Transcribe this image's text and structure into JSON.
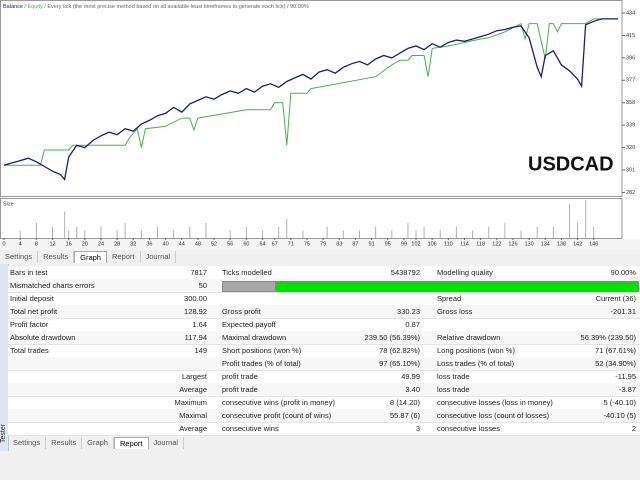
{
  "chart_data": {
    "type": "line",
    "separator": " / ",
    "model": "Every tick (the most precise method based on all available least timeframes to generate each tick)",
    "quality": "90.00%",
    "annotation": "USDCAD",
    "xlim": [
      -1,
      153
    ],
    "ylim": [
      279,
      445
    ],
    "yticks": [
      282,
      301,
      320,
      339,
      358,
      377,
      396,
      415,
      434
    ],
    "xticks": [
      0,
      4,
      8,
      12,
      16,
      20,
      24,
      28,
      32,
      36,
      40,
      44,
      48,
      52,
      56,
      60,
      64,
      67,
      71,
      75,
      79,
      83,
      87,
      91,
      95,
      99,
      102,
      106,
      110,
      114,
      118,
      122,
      126,
      130,
      134,
      138,
      142,
      146
    ],
    "grid": false,
    "series": [
      {
        "name": "Balance",
        "color": "#1b2166",
        "x": [
          0,
          2,
          4,
          6,
          8,
          10,
          12,
          14,
          15,
          16,
          18,
          20,
          22,
          24,
          26,
          28,
          30,
          32,
          34,
          36,
          38,
          40,
          42,
          44,
          46,
          48,
          50,
          52,
          54,
          56,
          58,
          60,
          62,
          64,
          66,
          68,
          70,
          72,
          74,
          76,
          78,
          80,
          82,
          84,
          86,
          88,
          90,
          92,
          94,
          96,
          98,
          100,
          102,
          104,
          106,
          108,
          110,
          112,
          114,
          116,
          118,
          120,
          122,
          124,
          126,
          128,
          130,
          132,
          133,
          134,
          136,
          138,
          140,
          142,
          143,
          144,
          146,
          148,
          150,
          152
        ],
        "values": [
          305,
          307,
          309,
          311,
          308,
          304,
          300,
          297,
          293,
          312,
          322,
          320,
          326,
          330,
          333,
          331,
          336,
          334,
          340,
          343,
          347,
          349,
          354,
          350,
          357,
          360,
          363,
          361,
          365,
          368,
          366,
          370,
          367,
          372,
          374,
          371,
          376,
          379,
          382,
          378,
          384,
          386,
          383,
          388,
          391,
          393,
          390,
          395,
          398,
          396,
          400,
          404,
          406,
          403,
          408,
          405,
          409,
          411,
          410,
          412,
          414,
          416,
          419,
          420,
          422,
          423,
          413,
          388,
          380,
          398,
          402,
          390,
          385,
          378,
          372,
          424,
          427,
          429,
          429,
          429
        ]
      },
      {
        "name": "Equity",
        "color": "#4caf50",
        "x": [
          0,
          9,
          10,
          16,
          17,
          30,
          31,
          33,
          34,
          35,
          40,
          44,
          46,
          47,
          48,
          60,
          66,
          67,
          69,
          70,
          71,
          75,
          76,
          92,
          96,
          98,
          100,
          101,
          104,
          105,
          106,
          110,
          114,
          118,
          120,
          124,
          128,
          129,
          130,
          132,
          134,
          135,
          136,
          137,
          138,
          144,
          146,
          152
        ],
        "values": [
          305,
          305,
          318,
          318,
          322,
          322,
          328,
          336,
          320,
          336,
          338,
          345,
          345,
          335,
          345,
          352,
          352,
          358,
          358,
          322,
          366,
          366,
          370,
          380,
          390,
          394,
          394,
          398,
          398,
          380,
          404,
          406,
          409,
          412,
          413,
          418,
          425,
          412,
          425,
          425,
          395,
          425,
          425,
          418,
          425,
          425,
          429,
          429
        ]
      }
    ],
    "size": {
      "label": "Size",
      "ylim": [
        0,
        10
      ],
      "x": [
        4,
        8,
        12,
        15,
        16,
        18,
        20,
        24,
        28,
        30,
        34,
        38,
        42,
        46,
        50,
        56,
        60,
        64,
        68,
        70,
        74,
        80,
        84,
        88,
        92,
        96,
        100,
        102,
        104,
        108,
        112,
        116,
        120,
        124,
        128,
        132,
        136,
        140,
        142,
        144,
        146
      ],
      "values": [
        2,
        4,
        3,
        7,
        2,
        3,
        2,
        3,
        2,
        4,
        2,
        3,
        2,
        3,
        4,
        2,
        3,
        2,
        3,
        5,
        2,
        3,
        2,
        2,
        3,
        2,
        4,
        2,
        3,
        2,
        3,
        2,
        3,
        4,
        2,
        3,
        3,
        9,
        4,
        10,
        3
      ]
    }
  },
  "tabs_top": {
    "items": [
      "Settings",
      "Results",
      "Graph",
      "Report",
      "Journal"
    ],
    "active": 2
  },
  "tabs_bottom": {
    "items": [
      "Settings",
      "Results",
      "Graph",
      "Report",
      "Journal"
    ],
    "active": 3
  },
  "vertical_label": "Tester",
  "report": {
    "rows": [
      [
        "Bars in test",
        "7817",
        "Ticks modelled",
        "5438792",
        "Modelling quality",
        "90.00%"
      ],
      [
        "Mismatched charts errors",
        "50",
        null,
        null,
        null,
        null
      ],
      [
        "Initial deposit",
        "300.00",
        null,
        null,
        "Spread",
        "Current (36)"
      ],
      [
        "Total net profit",
        "128.92",
        "Gross profit",
        "330.23",
        "Gross loss",
        "-201.31"
      ],
      [
        "Profit factor",
        "1.64",
        "Expected payoff",
        "0.87",
        null,
        null
      ],
      [
        "Absolute drawdown",
        "117.94",
        "Maximal drawdown",
        "239.50 (56.39%)",
        "Relative drawdown",
        "56.39% (239.50)"
      ],
      [
        "Total trades",
        "149",
        "Short positions (won %)",
        "78 (62.82%)",
        "Long positions (won %)",
        "71 (67.61%)"
      ],
      [
        null,
        null,
        "Profit trades (% of total)",
        "97 (65.10%)",
        "Loss trades (% of total)",
        "52 (34.90%)"
      ],
      [
        null,
        "Largest",
        "profit trade",
        "49.99",
        "loss trade",
        "-11.95"
      ],
      [
        null,
        "Average",
        "profit trade",
        "3.40",
        "loss trade",
        "-3.87"
      ],
      [
        null,
        "Maximum",
        "consecutive wins (profit in money)",
        "8 (14.20)",
        "consecutive losses (loss in money)",
        "5 (-40.10)"
      ],
      [
        null,
        "Maximal",
        "consecutive profit (count of wins)",
        "55.87 (6)",
        "consecutive loss (count of losses)",
        "-40.10 (5)"
      ],
      [
        null,
        "Average",
        "consecutive wins",
        "3",
        "consecutive losses",
        "2"
      ]
    ]
  }
}
